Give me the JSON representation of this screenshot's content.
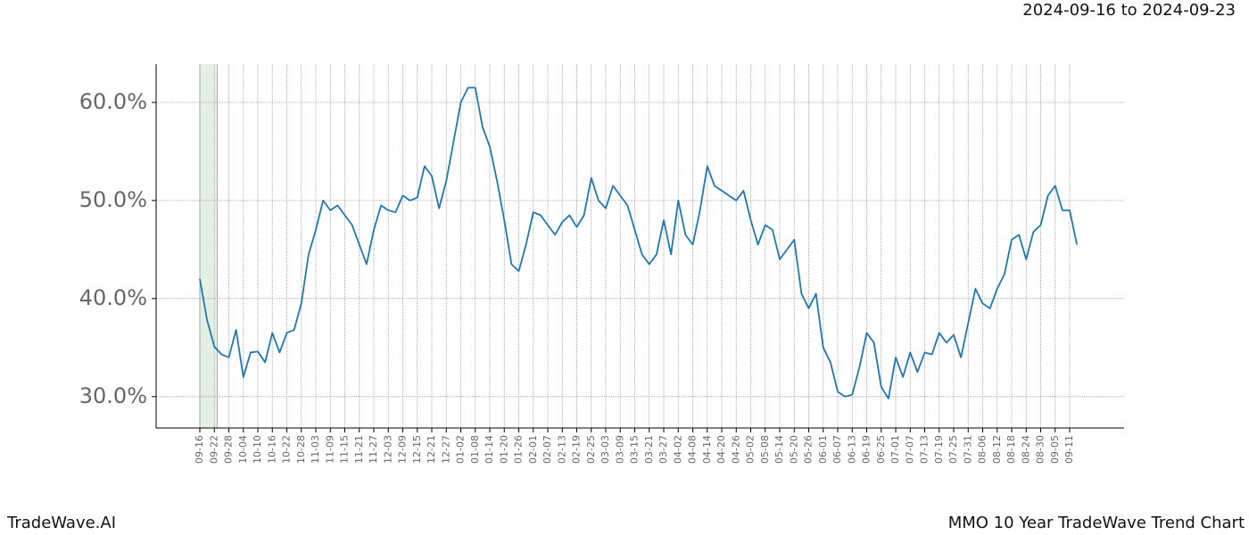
{
  "chart_data": {
    "type": "line",
    "title": "MMO 10 Year TradeWave Trend Chart",
    "subtitle": "2024-09-16 to 2024-09-23",
    "watermark": "TradeWave.AI",
    "categories": [
      "09-16",
      null,
      "09-22",
      null,
      "09-28",
      null,
      "10-04",
      null,
      "10-10",
      null,
      "10-16",
      null,
      "10-22",
      null,
      "10-28",
      null,
      "11-03",
      null,
      "11-09",
      null,
      "11-15",
      null,
      "11-21",
      null,
      "11-27",
      null,
      "12-03",
      null,
      "12-09",
      null,
      "12-15",
      null,
      "12-21",
      null,
      "12-27",
      null,
      "01-02",
      null,
      "01-08",
      null,
      "01-14",
      null,
      "01-20",
      null,
      "01-26",
      null,
      "02-01",
      null,
      "02-07",
      null,
      "02-13",
      null,
      "02-19",
      null,
      "02-25",
      null,
      "03-03",
      null,
      "03-09",
      null,
      "03-15",
      null,
      "03-21",
      null,
      "03-27",
      null,
      "04-02",
      null,
      "04-08",
      null,
      "04-14",
      null,
      "04-20",
      null,
      "04-26",
      null,
      "05-02",
      null,
      "05-08",
      null,
      "05-14",
      null,
      "05-20",
      null,
      "05-26",
      null,
      "06-01",
      null,
      "06-07",
      null,
      "06-13",
      null,
      "06-19",
      null,
      "06-25",
      null,
      "07-01",
      null,
      "07-07",
      null,
      "07-13",
      null,
      "07-19",
      null,
      "07-25",
      null,
      "07-31",
      null,
      "08-06",
      null,
      "08-12",
      null,
      "08-18",
      null,
      "08-24",
      null,
      "08-30",
      null,
      "09-05",
      null,
      "09-11",
      null
    ],
    "series": [
      {
        "name": "MMO",
        "color": "#1f77b4",
        "values": [
          42.0,
          37.8,
          35.1,
          34.3,
          34.0,
          36.8,
          32.0,
          34.5,
          34.6,
          33.5,
          36.5,
          34.5,
          36.5,
          36.8,
          39.5,
          44.5,
          47,
          50,
          49,
          49.5,
          48.5,
          47.5,
          45.5,
          43.5,
          47,
          49.5,
          49,
          48.8,
          50.5,
          50.0,
          50.3,
          53.5,
          52.5,
          49.2,
          52,
          56,
          60,
          61.5,
          61.5,
          57.5,
          55.5,
          52,
          48,
          43.5,
          42.8,
          45.5,
          48.8,
          48.5,
          47.5,
          46.5,
          47.8,
          48.5,
          47.3,
          48.5,
          52.3,
          50.0,
          49.2,
          51.5,
          50.5,
          49.5,
          47,
          44.5,
          43.5,
          44.5,
          48,
          44.5,
          50,
          46.5,
          45.5,
          49,
          53.5,
          51.5,
          51.0,
          50.5,
          50.0,
          51.0,
          48,
          45.5,
          47.5,
          47.0,
          44,
          45.0,
          46,
          40.5,
          39,
          40.5,
          35,
          33.5,
          30.5,
          30.0,
          30.2,
          33.0,
          36.5,
          35.5,
          31.0,
          29.8,
          34.0,
          32.0,
          34.5,
          32.5,
          34.5,
          34.3,
          36.5,
          35.5,
          36.3,
          34.0,
          37.5,
          41.0,
          39.5,
          39.0,
          41.0,
          42.5,
          46.0,
          46.5,
          44.0,
          46.8,
          47.5,
          50.5,
          51.5,
          49.0,
          49.0,
          45.5
        ]
      }
    ],
    "ylim": [
      26.8,
      63.9
    ],
    "yticks": [
      {
        "value": 30,
        "label": "30.0%"
      },
      {
        "value": 40,
        "label": "40.0%"
      },
      {
        "value": 50,
        "label": "50.0%"
      },
      {
        "value": 60,
        "label": "60.0%"
      }
    ],
    "grid": true
  }
}
